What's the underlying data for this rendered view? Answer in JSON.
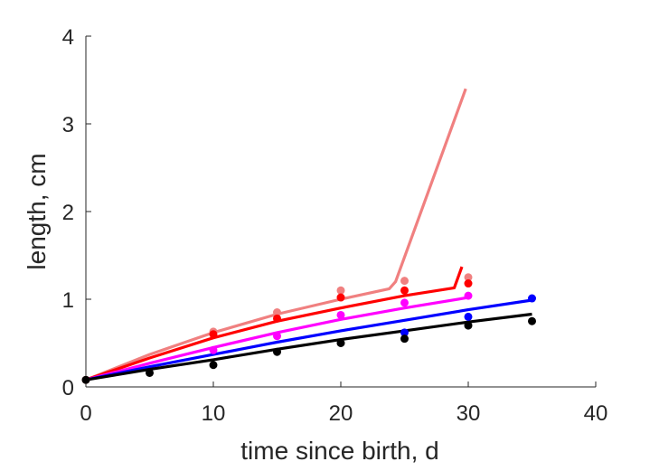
{
  "chart_data": {
    "type": "scatter",
    "title": "",
    "xlabel": "time since birth, d",
    "ylabel": "length, cm",
    "xlim": [
      0,
      40
    ],
    "ylim": [
      0,
      4
    ],
    "xticks": [
      0,
      10,
      20,
      30,
      40
    ],
    "yticks": [
      0,
      1,
      2,
      3,
      4
    ],
    "grid": false,
    "legend": "none",
    "series": [
      {
        "color": "#f08080",
        "points": {
          "x": [
            0,
            10,
            15,
            20,
            25,
            30
          ],
          "y": [
            0.08,
            0.63,
            0.85,
            1.1,
            1.21,
            1.25
          ]
        },
        "fit": {
          "x": [
            0,
            5,
            10,
            15,
            20,
            23.8,
            24.3,
            29.8
          ],
          "y": [
            0.08,
            0.37,
            0.62,
            0.83,
            1.0,
            1.12,
            1.2,
            3.4
          ]
        }
      },
      {
        "color": "#ff0000",
        "points": {
          "x": [
            10,
            15,
            20,
            25,
            30
          ],
          "y": [
            0.6,
            0.78,
            1.02,
            1.1,
            1.18
          ]
        },
        "fit": {
          "x": [
            0,
            5,
            10,
            15,
            20,
            25,
            28.9,
            29.5
          ],
          "y": [
            0.08,
            0.33,
            0.56,
            0.75,
            0.9,
            1.04,
            1.13,
            1.37
          ]
        }
      },
      {
        "color": "#ff00ff",
        "points": {
          "x": [
            10,
            15,
            20,
            25,
            30
          ],
          "y": [
            0.42,
            0.58,
            0.82,
            0.96,
            1.04
          ]
        },
        "fit": {
          "x": [
            0,
            5,
            10,
            15,
            20,
            25,
            30
          ],
          "y": [
            0.08,
            0.27,
            0.45,
            0.62,
            0.77,
            0.9,
            1.02
          ]
        }
      },
      {
        "color": "#0000ff",
        "points": {
          "x": [
            25,
            30,
            35
          ],
          "y": [
            0.62,
            0.8,
            1.01
          ]
        },
        "fit": {
          "x": [
            0,
            5,
            10,
            15,
            20,
            25,
            30,
            35
          ],
          "y": [
            0.08,
            0.23,
            0.37,
            0.51,
            0.64,
            0.76,
            0.88,
            0.99
          ]
        }
      },
      {
        "color": "#000000",
        "points": {
          "x": [
            0,
            5,
            10,
            15,
            20,
            25,
            30,
            35
          ],
          "y": [
            0.08,
            0.16,
            0.25,
            0.4,
            0.5,
            0.55,
            0.7,
            0.75
          ]
        },
        "fit": {
          "x": [
            0,
            5,
            10,
            15,
            20,
            25,
            30,
            35
          ],
          "y": [
            0.08,
            0.2,
            0.31,
            0.43,
            0.54,
            0.64,
            0.74,
            0.83
          ]
        }
      }
    ]
  }
}
